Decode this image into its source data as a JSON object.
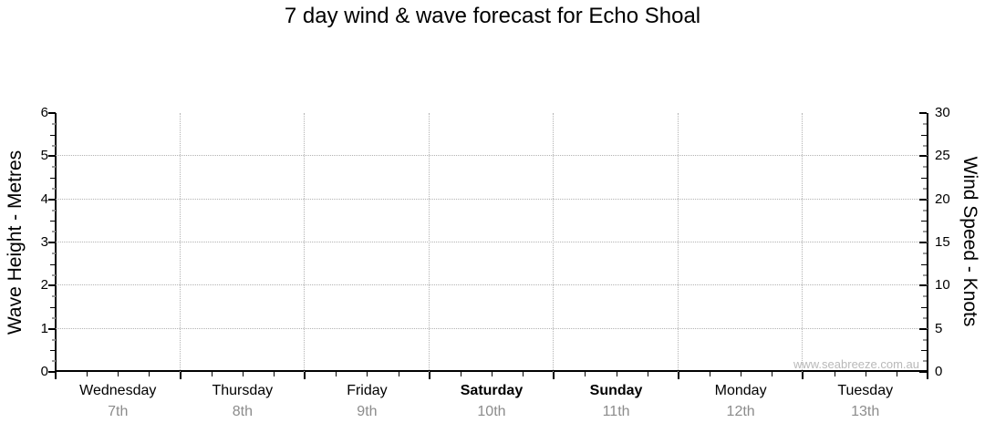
{
  "chart_data": {
    "type": "line",
    "title": "7 day wind & wave forecast for Echo Shoal",
    "watermark": "www.seabreeze.com.au",
    "series": [],
    "y_left_axis": {
      "label": "Wave Height - Metres",
      "min": 0,
      "max": 6,
      "major_step": 1,
      "minor_step": 0.25,
      "tick_labels": [
        "0",
        "1",
        "2",
        "3",
        "4",
        "5",
        "6"
      ]
    },
    "y_right_axis": {
      "label": "Wind Speed - Knots",
      "min": 0,
      "max": 30,
      "major_step": 5,
      "minor_step": 1.25,
      "tick_labels": [
        "0",
        "5",
        "10",
        "15",
        "20",
        "25",
        "30"
      ]
    },
    "x_axis": {
      "minor_ticks_per_day": 4,
      "days": [
        {
          "name": "Wednesday",
          "date": "7th",
          "bold": false
        },
        {
          "name": "Thursday",
          "date": "8th",
          "bold": false
        },
        {
          "name": "Friday",
          "date": "9th",
          "bold": false
        },
        {
          "name": "Saturday",
          "date": "10th",
          "bold": true
        },
        {
          "name": "Sunday",
          "date": "11th",
          "bold": true
        },
        {
          "name": "Monday",
          "date": "12th",
          "bold": false
        },
        {
          "name": "Tuesday",
          "date": "13th",
          "bold": false
        }
      ]
    },
    "grid": {
      "h_lines_at_metres": [
        1,
        2,
        3,
        4,
        5
      ],
      "v_lines_at_day_boundaries": true,
      "style": "dotted",
      "color": "#b3b3b3"
    },
    "colors": {
      "axis": "#000000",
      "tick_minor": "#999999",
      "date_label": "#8c8c8c",
      "watermark": "#b9b9b9",
      "title": "#000000"
    }
  }
}
